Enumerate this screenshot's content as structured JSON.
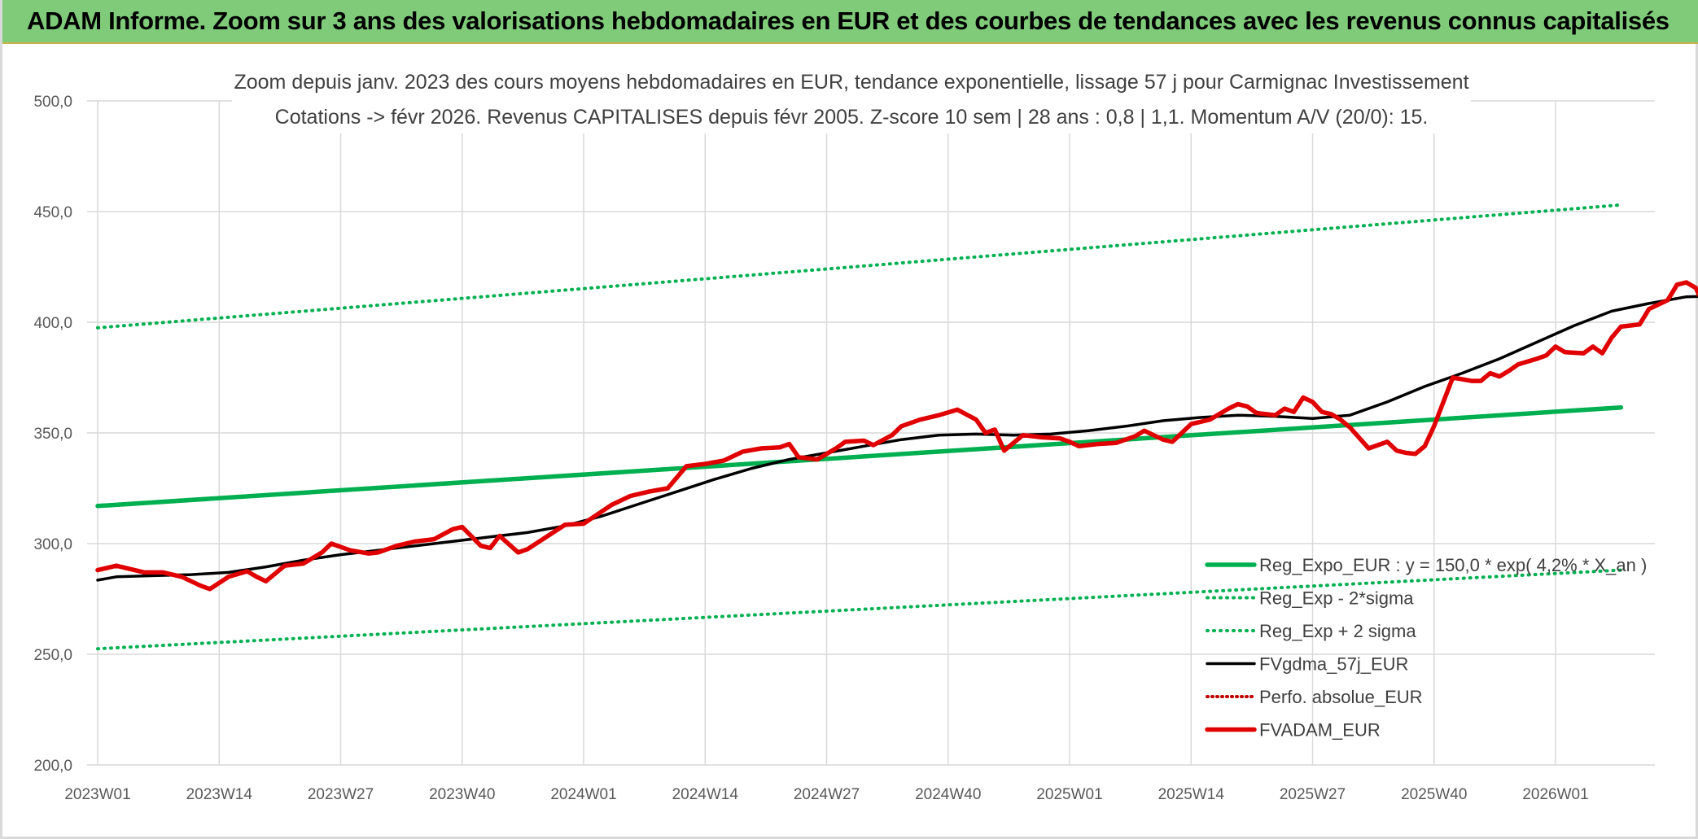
{
  "header": {
    "title": "ADAM Informe. Zoom sur 3 ans des valorisations hebdomadaires en EUR et des courbes de tendances avec les revenus connus capitalisés"
  },
  "colors": {
    "banner": "#7fcb7a",
    "regression": "#00b050",
    "price": "#e00000",
    "moving_average": "#000000",
    "perfo_absolue": "#c00000",
    "grid": "#d9d9d9"
  },
  "chart_data": {
    "type": "line",
    "title": "Zoom depuis janv. 2023 des cours moyens hebdomadaires en EUR, tendance exponentielle, lissage 57 j pour Carmignac Investissement",
    "subtitle": "Cotations -> févr 2026. Revenus CAPITALISES depuis févr 2005. Z-score 10 sem | 28 ans : 0,8 | 1,1. Momentum A/V (20/0): 15.",
    "ylim": [
      200,
      500
    ],
    "yticks": [
      "200,0",
      "250,0",
      "300,0",
      "350,0",
      "400,0",
      "450,0",
      "500,0"
    ],
    "xticks": [
      "2023W01",
      "2023W14",
      "2023W27",
      "2023W40",
      "2024W01",
      "2024W14",
      "2024W27",
      "2024W40",
      "2025W01",
      "2025W14",
      "2025W27",
      "2025W40",
      "2026W01"
    ],
    "x_first": "2023W01",
    "x_last": "2026W07",
    "grid": true,
    "legend_position": "bottom-right",
    "series": [
      {
        "name": "Reg_Expo_EUR : y = 150,0 * exp( 4,2% * X_an )",
        "style": "solid-thick",
        "color": "#00b050",
        "points": [
          [
            0,
            317.0
          ],
          [
            163,
            361.5
          ]
        ]
      },
      {
        "name": "Reg_Exp - 2*sigma",
        "style": "dotted",
        "color": "#00b050",
        "points": [
          [
            0,
            252.5
          ],
          [
            163,
            288.0
          ]
        ]
      },
      {
        "name": "Reg_Exp + 2 sigma",
        "style": "dotted",
        "color": "#00b050",
        "points": [
          [
            0,
            397.5
          ],
          [
            163,
            453.0
          ]
        ]
      },
      {
        "name": "FVgdma_57j_EUR",
        "style": "solid",
        "color": "#000000",
        "points": [
          [
            0,
            283.5
          ],
          [
            2,
            285
          ],
          [
            6,
            285.5
          ],
          [
            10,
            286
          ],
          [
            14,
            287
          ],
          [
            18,
            289.5
          ],
          [
            22,
            292.5
          ],
          [
            26,
            295
          ],
          [
            30,
            297
          ],
          [
            34,
            299
          ],
          [
            38,
            301
          ],
          [
            42,
            303
          ],
          [
            46,
            305
          ],
          [
            50,
            308
          ],
          [
            54,
            312.5
          ],
          [
            58,
            318
          ],
          [
            62,
            323.5
          ],
          [
            66,
            329
          ],
          [
            70,
            334
          ],
          [
            74,
            338
          ],
          [
            78,
            341
          ],
          [
            82,
            344
          ],
          [
            86,
            347
          ],
          [
            90,
            349
          ],
          [
            94,
            349.5
          ],
          [
            98,
            349
          ],
          [
            102,
            349.5
          ],
          [
            106,
            351
          ],
          [
            110,
            353
          ],
          [
            114,
            355.5
          ],
          [
            118,
            357
          ],
          [
            122,
            358
          ],
          [
            126,
            357.5
          ],
          [
            130,
            356.5
          ],
          [
            134,
            358
          ],
          [
            138,
            364
          ],
          [
            142,
            371
          ],
          [
            146,
            377
          ],
          [
            150,
            383.5
          ],
          [
            154,
            391
          ],
          [
            158,
            398.5
          ],
          [
            162,
            405
          ],
          [
            166,
            408.5
          ],
          [
            170,
            411.5
          ],
          [
            174,
            412
          ],
          [
            176,
            411
          ],
          [
            178,
            410
          ]
        ]
      },
      {
        "name": "Perfo. absolue_EUR",
        "style": "dotted",
        "color": "#c00000",
        "points": []
      },
      {
        "name": "FVADAM_EUR",
        "style": "solid-thick",
        "color": "#e00000",
        "points": [
          [
            0,
            288
          ],
          [
            2,
            290
          ],
          [
            3,
            289
          ],
          [
            5,
            287
          ],
          [
            7,
            287
          ],
          [
            9,
            285
          ],
          [
            11,
            281
          ],
          [
            12,
            279.5
          ],
          [
            14,
            285
          ],
          [
            16,
            287.5
          ],
          [
            17,
            285
          ],
          [
            18,
            283
          ],
          [
            20,
            290
          ],
          [
            22,
            291
          ],
          [
            24,
            296
          ],
          [
            25,
            300
          ],
          [
            27,
            297
          ],
          [
            29,
            295.5
          ],
          [
            30,
            296
          ],
          [
            32,
            299
          ],
          [
            34,
            301
          ],
          [
            36,
            302
          ],
          [
            38,
            306.5
          ],
          [
            39,
            307.5
          ],
          [
            41,
            299
          ],
          [
            42,
            298
          ],
          [
            43,
            303.5
          ],
          [
            45,
            296
          ],
          [
            46,
            297.5
          ],
          [
            48,
            303
          ],
          [
            50,
            308.5
          ],
          [
            52,
            309
          ],
          [
            55,
            317.5
          ],
          [
            57,
            321.5
          ],
          [
            59,
            323.5
          ],
          [
            61,
            325
          ],
          [
            63,
            335
          ],
          [
            65,
            336
          ],
          [
            67,
            337.5
          ],
          [
            69,
            341.5
          ],
          [
            71,
            343
          ],
          [
            73,
            343.5
          ],
          [
            74,
            345
          ],
          [
            75,
            339
          ],
          [
            77,
            338
          ],
          [
            79,
            343
          ],
          [
            80,
            346
          ],
          [
            82,
            346.5
          ],
          [
            83,
            344.5
          ],
          [
            85,
            349
          ],
          [
            86,
            353
          ],
          [
            88,
            356
          ],
          [
            90,
            358
          ],
          [
            92,
            360.5
          ],
          [
            94,
            356
          ],
          [
            95,
            350
          ],
          [
            96,
            351.5
          ],
          [
            97,
            342
          ],
          [
            99,
            349
          ],
          [
            101,
            348
          ],
          [
            103,
            347.5
          ],
          [
            104,
            346
          ],
          [
            105,
            344
          ],
          [
            107,
            345
          ],
          [
            109,
            345.5
          ],
          [
            111,
            348.5
          ],
          [
            112,
            351
          ],
          [
            114,
            347
          ],
          [
            115,
            346
          ],
          [
            117,
            354
          ],
          [
            119,
            356
          ],
          [
            121,
            361
          ],
          [
            122,
            363
          ],
          [
            123,
            362
          ],
          [
            124,
            359
          ],
          [
            126,
            358
          ],
          [
            127,
            361
          ],
          [
            128,
            359.5
          ],
          [
            129,
            366
          ],
          [
            130,
            364
          ],
          [
            131,
            359.5
          ],
          [
            132,
            358.5
          ],
          [
            133,
            356
          ],
          [
            134,
            352.5
          ],
          [
            136,
            343
          ],
          [
            138,
            346
          ],
          [
            139,
            342
          ],
          [
            140,
            341
          ],
          [
            141,
            340.5
          ],
          [
            142,
            344
          ],
          [
            143,
            353
          ],
          [
            145,
            375
          ],
          [
            147,
            373.5
          ],
          [
            148,
            373.5
          ],
          [
            149,
            377
          ],
          [
            150,
            375.5
          ],
          [
            151,
            378
          ],
          [
            152,
            381
          ],
          [
            154,
            383.5
          ],
          [
            155,
            385
          ],
          [
            156,
            389
          ],
          [
            157,
            386.5
          ],
          [
            159,
            386
          ],
          [
            160,
            389
          ],
          [
            161,
            386
          ],
          [
            162,
            393
          ],
          [
            163,
            398
          ],
          [
            165,
            399
          ],
          [
            166,
            406
          ],
          [
            168,
            410
          ],
          [
            169,
            417
          ],
          [
            170,
            418
          ],
          [
            171,
            415.5
          ],
          [
            172,
            407
          ],
          [
            174,
            406
          ],
          [
            175,
            408
          ],
          [
            176,
            406.5
          ],
          [
            177,
            409
          ],
          [
            178,
            411.5
          ],
          [
            179,
            416.5
          ],
          [
            180,
            427
          ],
          [
            181,
            426.5
          ],
          [
            182,
            424
          ],
          [
            183,
            423
          ],
          [
            185,
            407
          ],
          [
            186,
            406
          ],
          [
            187,
            408
          ]
        ]
      }
    ]
  }
}
